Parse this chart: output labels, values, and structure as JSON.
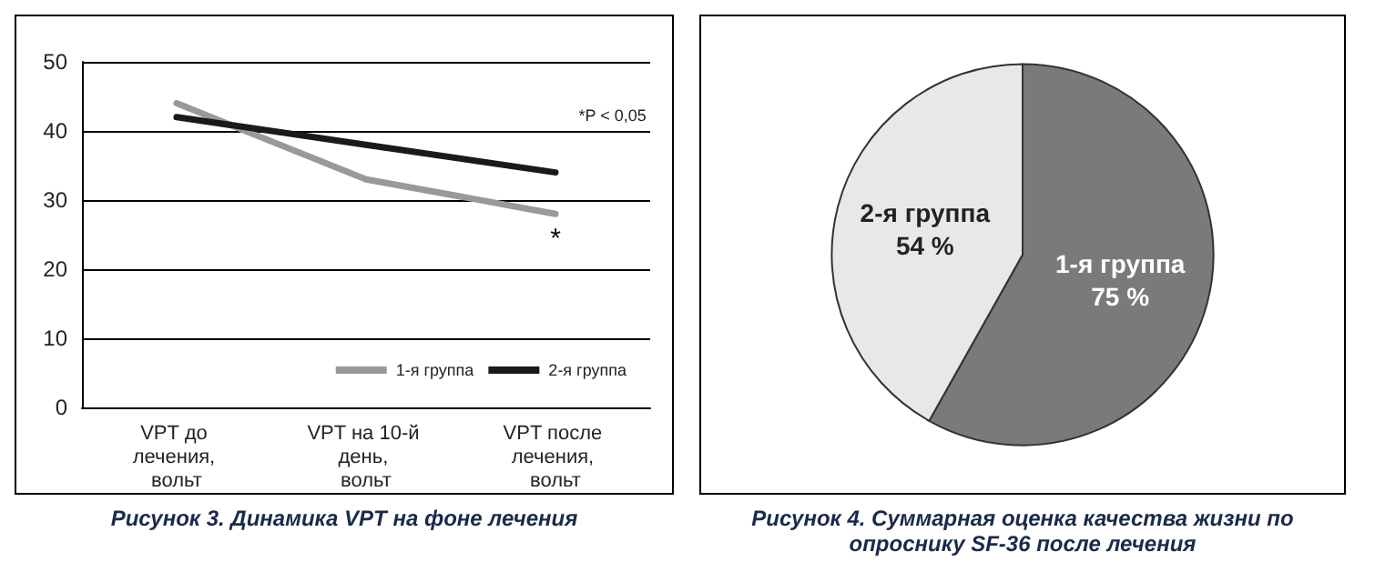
{
  "chart_data": [
    {
      "type": "line",
      "title": "Рисунок 3. Динамика VPT на фоне лечения",
      "categories": [
        "VPT до лечения, вольт",
        "VPT на 10-й день, вольт",
        "VPT после лечения, вольт"
      ],
      "series": [
        {
          "name": "1-я группа",
          "color": "#999999",
          "values": [
            44,
            33,
            28
          ]
        },
        {
          "name": "2-я группа",
          "color": "#1a1a1a",
          "values": [
            42,
            38,
            34
          ]
        }
      ],
      "ylim": [
        0,
        50
      ],
      "yticks": [
        0,
        10,
        20,
        30,
        40,
        50
      ],
      "grid": "y",
      "legend": "right",
      "marker": "none",
      "line_style": "solid",
      "annotations": [
        "*P < 0,05",
        "*"
      ]
    },
    {
      "type": "pie",
      "title": "Рисунок 4. Суммарная оценка качества жизни по опроснику SF-36 после лечения",
      "categories": [
        "1-я группа",
        "2-я группа"
      ],
      "values": [
        75,
        54
      ],
      "colors": [
        "#7a7a7a",
        "#e8e8e8"
      ],
      "value_labels": [
        "75 %",
        "54 %"
      ]
    }
  ]
}
